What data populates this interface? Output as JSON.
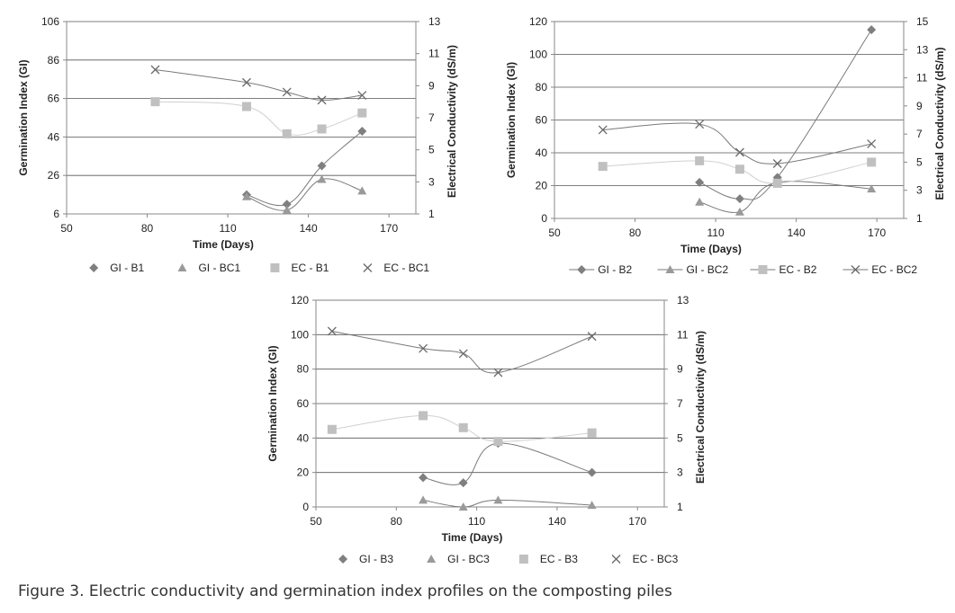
{
  "caption": "Figure 3. Electric conductivity and germination index profiles on the composting piles",
  "colors": {
    "gi_b": "#7f7f7f",
    "gi_bc": "#9a9a9a",
    "ec_b": "#c0c0c0",
    "ec_bc": "#6a6a6a",
    "grid": "#555555",
    "axis": "#888888",
    "text": "#222222"
  },
  "chart_data": [
    {
      "type": "line",
      "xlabel": "Time (Days)",
      "ylabel": "Germination Index (GI)",
      "y2label": "Electrical Conductivity (dS/m)",
      "xlim": [
        50,
        180
      ],
      "xticks": [
        50,
        80,
        110,
        140,
        170
      ],
      "ylim": [
        6,
        106
      ],
      "yticks": [
        6,
        26,
        46,
        66,
        86,
        106
      ],
      "y2lim": [
        1,
        13
      ],
      "y2ticks": [
        1,
        3,
        5,
        7,
        9,
        11,
        13
      ],
      "grid": "horizontal",
      "legend_position": "bottom",
      "series": [
        {
          "name": "GI - B1",
          "marker": "diamond",
          "axis": "left",
          "x": [
            117,
            132,
            145,
            160
          ],
          "y": [
            16,
            11,
            31,
            49
          ]
        },
        {
          "name": "GI - BC1",
          "marker": "triangle",
          "axis": "left",
          "x": [
            117,
            132,
            145,
            160
          ],
          "y": [
            15,
            8,
            24,
            18
          ]
        },
        {
          "name": "EC - B1",
          "marker": "square",
          "axis": "right",
          "x": [
            83,
            117,
            132,
            145,
            160
          ],
          "y": [
            8.0,
            7.7,
            6.0,
            6.3,
            7.3
          ]
        },
        {
          "name": "EC - BC1",
          "marker": "x",
          "axis": "right",
          "x": [
            83,
            117,
            132,
            145,
            160
          ],
          "y": [
            10.0,
            9.2,
            8.6,
            8.1,
            8.4
          ]
        }
      ]
    },
    {
      "type": "line",
      "xlabel": "Time (Days)",
      "ylabel": "Germination Index (GI)",
      "y2label": "Electrical Conductivity (dS/m)",
      "xlim": [
        50,
        180
      ],
      "xticks": [
        50,
        80,
        110,
        140,
        170
      ],
      "ylim": [
        0,
        120
      ],
      "yticks": [
        0,
        20,
        40,
        60,
        80,
        100,
        120
      ],
      "y2lim": [
        1,
        15
      ],
      "y2ticks": [
        1,
        3,
        5,
        7,
        9,
        11,
        13,
        15
      ],
      "grid": "horizontal",
      "legend_position": "bottom",
      "series": [
        {
          "name": "GI - B2",
          "marker": "diamond",
          "axis": "left",
          "x": [
            104,
            119,
            133,
            168
          ],
          "y": [
            22,
            12,
            25,
            115
          ]
        },
        {
          "name": "GI - BC2",
          "marker": "triangle",
          "axis": "left",
          "x": [
            104,
            119,
            133,
            168
          ],
          "y": [
            10,
            4,
            22,
            18
          ]
        },
        {
          "name": "EC - B2",
          "marker": "square",
          "axis": "right",
          "x": [
            68,
            104,
            119,
            133,
            168
          ],
          "y": [
            4.7,
            5.1,
            4.5,
            3.5,
            5.0
          ]
        },
        {
          "name": "EC - BC2",
          "marker": "x",
          "axis": "right",
          "x": [
            68,
            104,
            119,
            133,
            168
          ],
          "y": [
            7.3,
            7.7,
            5.7,
            4.9,
            6.3
          ]
        }
      ]
    },
    {
      "type": "line",
      "xlabel": "Time (Days)",
      "ylabel": "Germination Index (GI)",
      "y2label": "Electrical Conductivity (dS/m)",
      "xlim": [
        50,
        180
      ],
      "xticks": [
        50,
        80,
        110,
        140,
        170
      ],
      "ylim": [
        0,
        120
      ],
      "yticks": [
        0,
        20,
        40,
        60,
        80,
        100,
        120
      ],
      "y2lim": [
        1,
        13
      ],
      "y2ticks": [
        1,
        3,
        5,
        7,
        9,
        11,
        13
      ],
      "grid": "horizontal",
      "legend_position": "bottom",
      "series": [
        {
          "name": "GI - B3",
          "marker": "diamond",
          "axis": "left",
          "x": [
            90,
            105,
            118,
            153
          ],
          "y": [
            17,
            14,
            37,
            20
          ]
        },
        {
          "name": "GI - BC3",
          "marker": "triangle",
          "axis": "left",
          "x": [
            90,
            105,
            118,
            153
          ],
          "y": [
            4,
            0,
            4,
            1
          ]
        },
        {
          "name": "EC - B3",
          "marker": "square",
          "axis": "right",
          "x": [
            56,
            90,
            105,
            118,
            153
          ],
          "y": [
            5.5,
            6.3,
            5.6,
            4.8,
            5.3
          ]
        },
        {
          "name": "EC - BC3",
          "marker": "x",
          "axis": "right",
          "x": [
            56,
            90,
            105,
            118,
            153
          ],
          "y": [
            11.2,
            10.2,
            9.9,
            8.8,
            10.9
          ]
        }
      ]
    }
  ]
}
